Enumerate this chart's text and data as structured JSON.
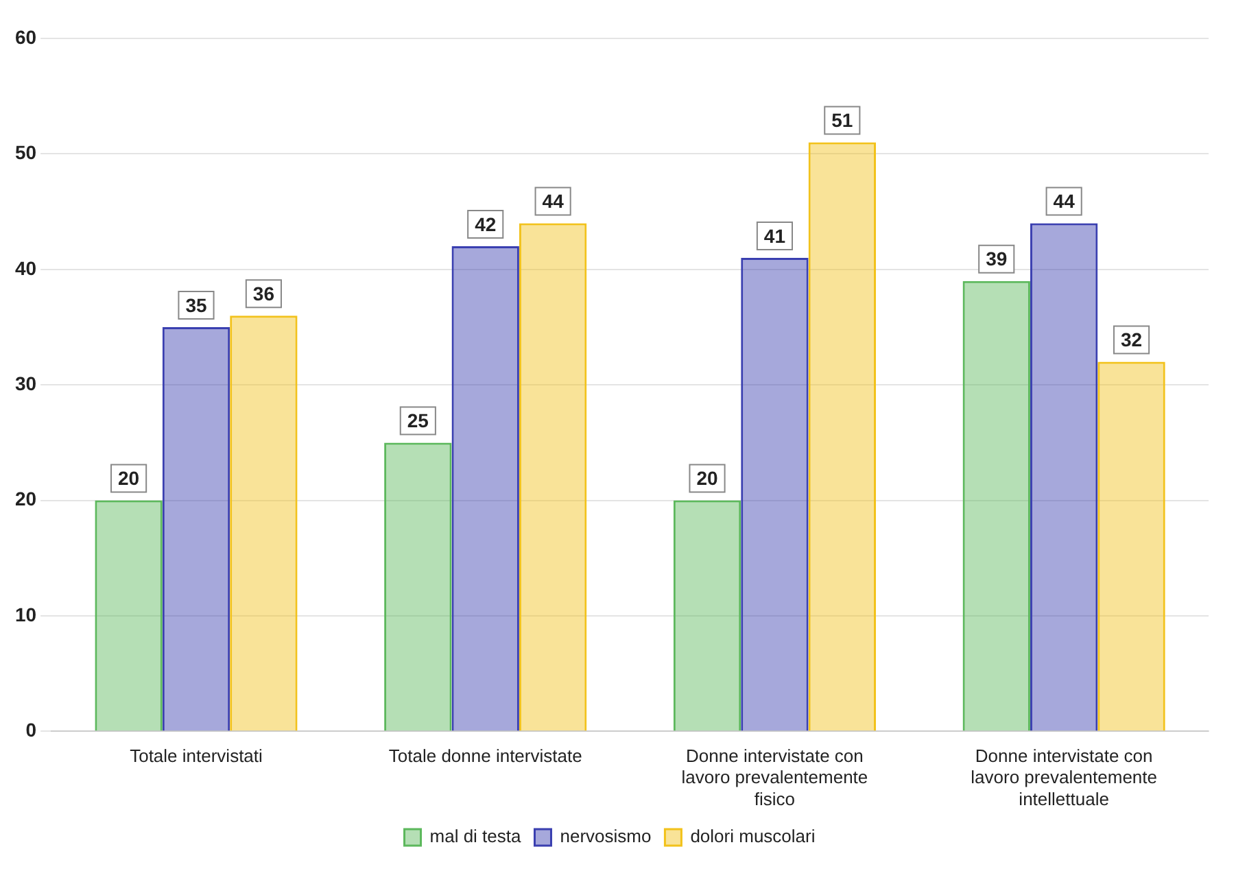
{
  "chart_data": {
    "type": "bar",
    "categories": [
      "Totale intervistati",
      "Totale donne intervistate",
      "Donne intervistate con lavoro prevalentemente fisico",
      "Donne intervistate con lavoro prevalentemente intellettuale"
    ],
    "series": [
      {
        "name": "mal di testa",
        "color": "#5cb85c",
        "values": [
          20,
          25,
          20,
          39
        ]
      },
      {
        "name": "nervosismo",
        "color": "#3a3fb0",
        "values": [
          35,
          42,
          41,
          44
        ]
      },
      {
        "name": "dolori muscolari",
        "color": "#f2c21b",
        "values": [
          36,
          44,
          51,
          32
        ]
      }
    ],
    "ylim": [
      0,
      60
    ],
    "yticks": [
      0,
      10,
      20,
      30,
      40,
      50,
      60
    ],
    "grid": "y",
    "legend": "bottom",
    "data_labels": true
  }
}
